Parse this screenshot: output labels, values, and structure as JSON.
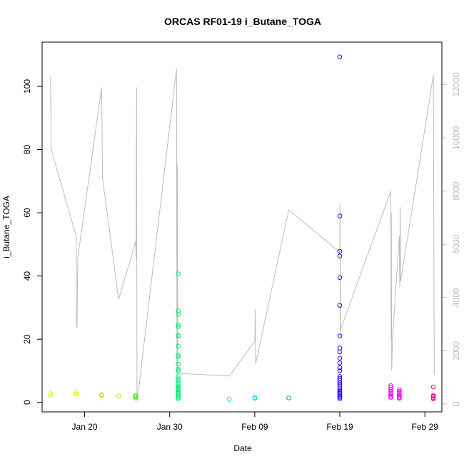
{
  "chart_data": {
    "type": "scatter",
    "title": "ORCAS RF01-19 i_Butane_TOGA",
    "xlabel": "Date",
    "ylabel": "i_Butane_TOGA",
    "x_ticks": [
      "Jan 20",
      "Jan 30",
      "Feb 09",
      "Feb 19",
      "Feb 29"
    ],
    "x_range": [
      "Jan 15",
      "Mar 02"
    ],
    "y_ticks": [
      0,
      20,
      40,
      60,
      80,
      100
    ],
    "ylim": [
      -3,
      114
    ],
    "y2_ticks": [
      0,
      2000,
      4000,
      6000,
      8000,
      10000,
      12000
    ],
    "y2lim": [
      -300,
      13600
    ],
    "y2_color": "#bdbdbd",
    "grid": false,
    "legend": "none",
    "series": [
      {
        "color": "#d8f000",
        "points": [
          {
            "x": "Jan 16",
            "y": 2.8
          },
          {
            "x": "Jan 16",
            "y": 2.2
          },
          {
            "x": "Jan 19",
            "y": 3.1
          },
          {
            "x": "Jan 19",
            "y": 2.6
          }
        ]
      },
      {
        "color": "#9cf000",
        "points": [
          {
            "x": "Jan 22",
            "y": 2.4
          },
          {
            "x": "Jan 22",
            "y": 2.2
          },
          {
            "x": "Jan 24",
            "y": 2.0
          }
        ]
      },
      {
        "color": "#3cf000",
        "points": [
          {
            "x": "Jan 26",
            "y": 2.2
          },
          {
            "x": "Jan 26",
            "y": 1.8
          },
          {
            "x": "Jan 26",
            "y": 1.4
          }
        ]
      },
      {
        "color": "#00ee77",
        "points": [
          {
            "x": "Jan 31",
            "y": 40.7
          },
          {
            "x": "Jan 31",
            "y": 29.0
          },
          {
            "x": "Jan 31",
            "y": 27.8
          },
          {
            "x": "Jan 31",
            "y": 24.5
          },
          {
            "x": "Jan 31",
            "y": 24.0
          },
          {
            "x": "Jan 31",
            "y": 21.2
          },
          {
            "x": "Jan 31",
            "y": 21.0
          },
          {
            "x": "Jan 31",
            "y": 17.8
          },
          {
            "x": "Jan 31",
            "y": 15.0
          },
          {
            "x": "Jan 31",
            "y": 14.5
          },
          {
            "x": "Jan 31",
            "y": 12.1
          },
          {
            "x": "Jan 31",
            "y": 10.5
          },
          {
            "x": "Jan 31",
            "y": 10.0
          },
          {
            "x": "Jan 31",
            "y": 8.2
          },
          {
            "x": "Jan 31",
            "y": 7.5
          },
          {
            "x": "Jan 31",
            "y": 6.8
          },
          {
            "x": "Jan 31",
            "y": 6.0
          },
          {
            "x": "Jan 31",
            "y": 5.5
          },
          {
            "x": "Jan 31",
            "y": 5.0
          },
          {
            "x": "Jan 31",
            "y": 4.5
          },
          {
            "x": "Jan 31",
            "y": 4.0
          },
          {
            "x": "Jan 31",
            "y": 3.6
          },
          {
            "x": "Jan 31",
            "y": 3.2
          },
          {
            "x": "Jan 31",
            "y": 2.8
          },
          {
            "x": "Jan 31",
            "y": 2.4
          },
          {
            "x": "Jan 31",
            "y": 2.0
          },
          {
            "x": "Jan 31",
            "y": 1.6
          },
          {
            "x": "Jan 31",
            "y": 1.2
          }
        ]
      },
      {
        "color": "#00eebb",
        "points": [
          {
            "x": "Feb 06",
            "y": 1.0
          }
        ]
      },
      {
        "color": "#00e0e8",
        "points": [
          {
            "x": "Feb 09",
            "y": 1.6
          },
          {
            "x": "Feb 09",
            "y": 1.3
          }
        ]
      },
      {
        "color": "#0090e8",
        "points": [
          {
            "x": "Feb 13",
            "y": 1.4
          }
        ]
      },
      {
        "color": "#3300ee",
        "points": [
          {
            "x": "Feb 19",
            "y": 109.3
          },
          {
            "x": "Feb 19",
            "y": 59.0
          },
          {
            "x": "Feb 19",
            "y": 47.8
          },
          {
            "x": "Feb 19",
            "y": 46.3
          },
          {
            "x": "Feb 19",
            "y": 39.5
          },
          {
            "x": "Feb 19",
            "y": 30.7
          },
          {
            "x": "Feb 19",
            "y": 21.0
          },
          {
            "x": "Feb 19",
            "y": 17.2
          },
          {
            "x": "Feb 19",
            "y": 16.0
          },
          {
            "x": "Feb 19",
            "y": 14.0
          },
          {
            "x": "Feb 19",
            "y": 12.5
          },
          {
            "x": "Feb 19",
            "y": 11.0
          },
          {
            "x": "Feb 19",
            "y": 10.0
          },
          {
            "x": "Feb 19",
            "y": 8.2
          },
          {
            "x": "Feb 19",
            "y": 7.6
          },
          {
            "x": "Feb 19",
            "y": 7.0
          },
          {
            "x": "Feb 19",
            "y": 6.4
          },
          {
            "x": "Feb 19",
            "y": 5.8
          },
          {
            "x": "Feb 19",
            "y": 5.2
          },
          {
            "x": "Feb 19",
            "y": 4.6
          },
          {
            "x": "Feb 19",
            "y": 4.0
          },
          {
            "x": "Feb 19",
            "y": 3.6
          },
          {
            "x": "Feb 19",
            "y": 3.2
          },
          {
            "x": "Feb 19",
            "y": 2.8
          },
          {
            "x": "Feb 19",
            "y": 2.4
          },
          {
            "x": "Feb 19",
            "y": 2.0
          },
          {
            "x": "Feb 19",
            "y": 1.6
          },
          {
            "x": "Feb 19",
            "y": 1.2
          }
        ]
      },
      {
        "color": "#ee00ee",
        "points": [
          {
            "x": "Feb 25",
            "y": 5.3
          },
          {
            "x": "Feb 25",
            "y": 4.7
          },
          {
            "x": "Feb 25",
            "y": 4.0
          },
          {
            "x": "Feb 25",
            "y": 3.5
          },
          {
            "x": "Feb 25",
            "y": 3.0
          },
          {
            "x": "Feb 25",
            "y": 2.5
          },
          {
            "x": "Feb 25",
            "y": 2.0
          },
          {
            "x": "Feb 25",
            "y": 1.6
          },
          {
            "x": "Feb 26",
            "y": 4.0
          },
          {
            "x": "Feb 26",
            "y": 3.5
          },
          {
            "x": "Feb 26",
            "y": 3.0
          },
          {
            "x": "Feb 26",
            "y": 2.5
          },
          {
            "x": "Feb 26",
            "y": 2.0
          },
          {
            "x": "Feb 26",
            "y": 1.6
          },
          {
            "x": "Feb 26",
            "y": 1.3
          }
        ]
      },
      {
        "color": "#ee0099",
        "points": [
          {
            "x": "Mar 01",
            "y": 4.9
          },
          {
            "x": "Mar 01",
            "y": 2.2
          },
          {
            "x": "Mar 01",
            "y": 1.9
          },
          {
            "x": "Mar 01",
            "y": 1.5
          },
          {
            "x": "Mar 01",
            "y": 1.1
          }
        ]
      }
    ],
    "altitude_line": {
      "color": "#bdbdbd",
      "axis": "right",
      "points": [
        [
          "Jan 16.00",
          12300
        ],
        [
          "Jan 16.05",
          9600
        ],
        [
          "Jan 19.00",
          6300
        ],
        [
          "Jan 19.05",
          3100
        ],
        [
          "Jan 19.10",
          2850
        ],
        [
          "Jan 19.20",
          5500
        ],
        [
          "Jan 22.00",
          11900
        ],
        [
          "Jan 22.05",
          10200
        ],
        [
          "Jan 22.10",
          8500
        ],
        [
          "Jan 24.00",
          3930
        ],
        [
          "Jan 26.00",
          6100
        ],
        [
          "Jan 26.05",
          5500
        ],
        [
          "Jan 26.10",
          11900
        ],
        [
          "Jan 26.15",
          200
        ],
        [
          "Jan 26.20",
          130
        ],
        [
          "Jan 30.80",
          12600
        ],
        [
          "Jan 30.85",
          400
        ],
        [
          "Jan 30.90",
          9000
        ],
        [
          "Jan 30.95",
          1200
        ],
        [
          "Jan 31.00",
          1150
        ],
        [
          "Feb 06.00",
          1050
        ],
        [
          "Feb 09.00",
          2350
        ],
        [
          "Feb 09.05",
          3560
        ],
        [
          "Feb 09.10",
          1500
        ],
        [
          "Feb 13.00",
          7300
        ],
        [
          "Feb 19.00",
          5700
        ],
        [
          "Feb 19.02",
          7550
        ],
        [
          "Feb 19.04",
          2500
        ],
        [
          "Feb 19.06",
          5000
        ],
        [
          "Feb 19.08",
          2800
        ],
        [
          "Feb 25.00",
          8000
        ],
        [
          "Feb 25.03",
          2400
        ],
        [
          "Feb 25.06",
          7200
        ],
        [
          "Feb 25.10",
          1250
        ],
        [
          "Feb 25.20",
          2450
        ],
        [
          "Feb 26.00",
          6300
        ],
        [
          "Feb 26.05",
          4400
        ],
        [
          "Feb 26.10",
          7400
        ],
        [
          "Feb 26.15",
          4600
        ],
        [
          "Mar 01.00",
          12350
        ],
        [
          "Mar 01.10",
          1100
        ]
      ]
    }
  }
}
